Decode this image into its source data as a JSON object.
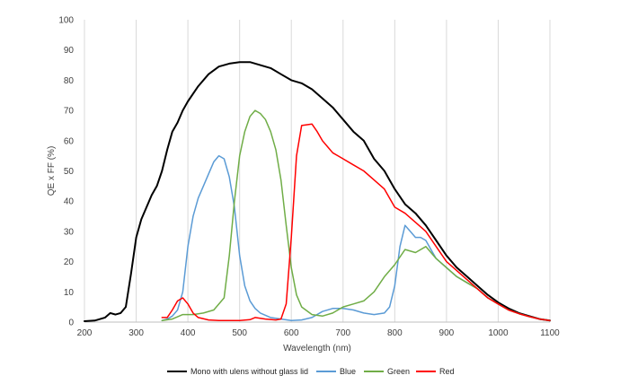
{
  "chart_data": {
    "type": "line",
    "title": "",
    "xlabel": "Wavelength (nm)",
    "ylabel": "QE x FF (%)",
    "xlim": [
      200,
      1100
    ],
    "ylim": [
      0,
      100
    ],
    "xticks": [
      200,
      300,
      400,
      500,
      600,
      700,
      800,
      900,
      1000,
      1100
    ],
    "yticks": [
      0,
      10,
      20,
      30,
      40,
      50,
      60,
      70,
      80,
      90,
      100
    ],
    "grid": "vertical",
    "legend": "bottom",
    "series": [
      {
        "name": "Mono with ulens without glass lid",
        "color": "#000000",
        "points": [
          [
            200,
            0.3
          ],
          [
            220,
            0.5
          ],
          [
            240,
            1.5
          ],
          [
            250,
            3
          ],
          [
            260,
            2.5
          ],
          [
            270,
            3
          ],
          [
            280,
            5
          ],
          [
            290,
            16
          ],
          [
            300,
            28
          ],
          [
            310,
            34
          ],
          [
            320,
            38
          ],
          [
            330,
            42
          ],
          [
            340,
            45
          ],
          [
            350,
            50
          ],
          [
            360,
            57
          ],
          [
            370,
            63
          ],
          [
            380,
            66
          ],
          [
            390,
            70
          ],
          [
            400,
            73
          ],
          [
            420,
            78
          ],
          [
            440,
            82
          ],
          [
            460,
            84.5
          ],
          [
            480,
            85.5
          ],
          [
            500,
            86
          ],
          [
            520,
            86
          ],
          [
            540,
            85
          ],
          [
            560,
            84
          ],
          [
            580,
            82
          ],
          [
            600,
            80
          ],
          [
            620,
            79
          ],
          [
            640,
            77
          ],
          [
            660,
            74
          ],
          [
            680,
            71
          ],
          [
            700,
            67
          ],
          [
            720,
            63
          ],
          [
            740,
            60
          ],
          [
            760,
            54
          ],
          [
            780,
            50
          ],
          [
            800,
            44
          ],
          [
            820,
            39
          ],
          [
            840,
            36
          ],
          [
            860,
            32
          ],
          [
            880,
            27
          ],
          [
            900,
            22
          ],
          [
            920,
            18
          ],
          [
            940,
            15
          ],
          [
            960,
            12
          ],
          [
            980,
            9
          ],
          [
            1000,
            6.5
          ],
          [
            1020,
            4.5
          ],
          [
            1040,
            3
          ],
          [
            1060,
            2
          ],
          [
            1080,
            1
          ],
          [
            1100,
            0.5
          ]
        ]
      },
      {
        "name": "Blue",
        "color": "#5b9bd5",
        "points": [
          [
            350,
            0.5
          ],
          [
            360,
            1
          ],
          [
            370,
            2
          ],
          [
            380,
            4
          ],
          [
            390,
            10
          ],
          [
            400,
            25
          ],
          [
            410,
            35
          ],
          [
            420,
            41
          ],
          [
            430,
            45
          ],
          [
            440,
            49
          ],
          [
            450,
            53
          ],
          [
            460,
            55
          ],
          [
            470,
            54
          ],
          [
            480,
            48
          ],
          [
            490,
            38
          ],
          [
            500,
            22
          ],
          [
            510,
            12
          ],
          [
            520,
            7
          ],
          [
            530,
            4.5
          ],
          [
            540,
            3
          ],
          [
            560,
            1.5
          ],
          [
            580,
            1
          ],
          [
            600,
            0.5
          ],
          [
            620,
            0.7
          ],
          [
            640,
            1.5
          ],
          [
            660,
            3.5
          ],
          [
            680,
            4.5
          ],
          [
            700,
            4.5
          ],
          [
            720,
            4
          ],
          [
            740,
            3
          ],
          [
            760,
            2.5
          ],
          [
            780,
            3
          ],
          [
            790,
            5
          ],
          [
            800,
            12
          ],
          [
            810,
            25
          ],
          [
            820,
            32
          ],
          [
            830,
            30
          ],
          [
            840,
            28
          ],
          [
            850,
            28
          ],
          [
            860,
            27
          ],
          [
            870,
            24
          ],
          [
            880,
            21
          ],
          [
            900,
            18
          ],
          [
            920,
            15
          ],
          [
            940,
            13
          ],
          [
            960,
            11
          ],
          [
            980,
            8
          ],
          [
            1000,
            6
          ],
          [
            1020,
            4
          ],
          [
            1040,
            2.8
          ],
          [
            1060,
            1.8
          ],
          [
            1080,
            1
          ],
          [
            1100,
            0.5
          ]
        ]
      },
      {
        "name": "Green",
        "color": "#70ad47",
        "points": [
          [
            350,
            0.5
          ],
          [
            370,
            1
          ],
          [
            390,
            2.5
          ],
          [
            410,
            2.5
          ],
          [
            430,
            3
          ],
          [
            450,
            4
          ],
          [
            470,
            8
          ],
          [
            480,
            22
          ],
          [
            490,
            40
          ],
          [
            500,
            55
          ],
          [
            510,
            63
          ],
          [
            520,
            68
          ],
          [
            530,
            70
          ],
          [
            540,
            69
          ],
          [
            550,
            67
          ],
          [
            560,
            63
          ],
          [
            570,
            57
          ],
          [
            580,
            47
          ],
          [
            590,
            32
          ],
          [
            600,
            18
          ],
          [
            610,
            9
          ],
          [
            620,
            5
          ],
          [
            640,
            2.5
          ],
          [
            660,
            2
          ],
          [
            680,
            3
          ],
          [
            700,
            5
          ],
          [
            720,
            6
          ],
          [
            740,
            7
          ],
          [
            760,
            10
          ],
          [
            780,
            15
          ],
          [
            800,
            19
          ],
          [
            820,
            24
          ],
          [
            840,
            23
          ],
          [
            860,
            25
          ],
          [
            880,
            21
          ],
          [
            900,
            18
          ],
          [
            920,
            15
          ],
          [
            940,
            13
          ],
          [
            960,
            11
          ],
          [
            980,
            8
          ],
          [
            1000,
            6
          ],
          [
            1020,
            4
          ],
          [
            1040,
            2.8
          ],
          [
            1060,
            1.8
          ],
          [
            1080,
            1
          ],
          [
            1100,
            0.5
          ]
        ]
      },
      {
        "name": "Red",
        "color": "#ff0000",
        "points": [
          [
            350,
            1.5
          ],
          [
            360,
            1.5
          ],
          [
            370,
            4
          ],
          [
            380,
            7
          ],
          [
            390,
            8
          ],
          [
            400,
            6
          ],
          [
            410,
            3
          ],
          [
            420,
            1.5
          ],
          [
            440,
            0.7
          ],
          [
            460,
            0.5
          ],
          [
            480,
            0.5
          ],
          [
            500,
            0.5
          ],
          [
            520,
            0.8
          ],
          [
            530,
            1.5
          ],
          [
            550,
            1
          ],
          [
            570,
            0.7
          ],
          [
            580,
            1
          ],
          [
            590,
            6
          ],
          [
            600,
            28
          ],
          [
            610,
            55
          ],
          [
            620,
            65
          ],
          [
            640,
            65.5
          ],
          [
            650,
            63
          ],
          [
            660,
            60
          ],
          [
            670,
            58
          ],
          [
            680,
            56
          ],
          [
            690,
            55
          ],
          [
            700,
            54
          ],
          [
            720,
            52
          ],
          [
            740,
            50
          ],
          [
            760,
            47
          ],
          [
            780,
            44
          ],
          [
            800,
            38
          ],
          [
            820,
            36
          ],
          [
            840,
            33
          ],
          [
            860,
            30
          ],
          [
            880,
            25
          ],
          [
            900,
            20
          ],
          [
            920,
            17
          ],
          [
            940,
            14
          ],
          [
            960,
            11
          ],
          [
            980,
            8
          ],
          [
            1000,
            6
          ],
          [
            1020,
            4
          ],
          [
            1040,
            2.8
          ],
          [
            1060,
            1.8
          ],
          [
            1080,
            1
          ],
          [
            1100,
            0.5
          ]
        ]
      }
    ]
  }
}
